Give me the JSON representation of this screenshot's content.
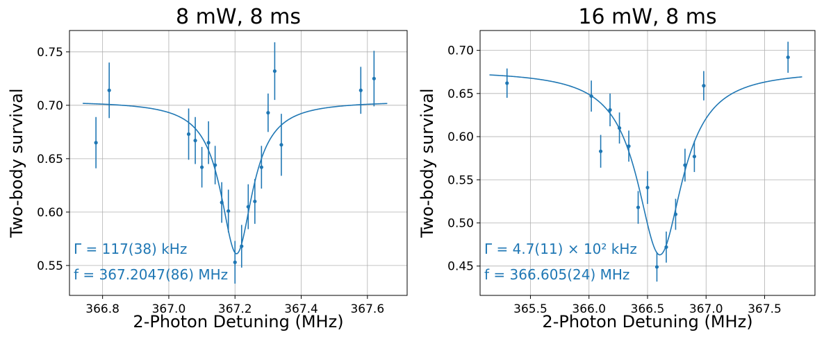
{
  "chart_data": [
    {
      "type": "scatter",
      "title": "8 mW, 8 ms",
      "xlabel": "2-Photon Detuning (MHz)",
      "ylabel": "Two-body survival",
      "xlim": [
        366.7,
        367.72
      ],
      "ylim": [
        0.522,
        0.77
      ],
      "grid": true,
      "x_ticks": [
        366.8,
        367.0,
        367.2,
        367.4,
        367.6
      ],
      "x_tick_labels": [
        "366.8",
        "367.0",
        "367.2",
        "367.4",
        "367.6"
      ],
      "y_ticks": [
        0.55,
        0.6,
        0.65,
        0.7,
        0.75
      ],
      "y_tick_labels": [
        "0.55",
        "0.60",
        "0.65",
        "0.70",
        "0.75"
      ],
      "color": "#1f77b4",
      "points": [
        {
          "x": 366.78,
          "y": 0.665,
          "err": 0.024
        },
        {
          "x": 366.82,
          "y": 0.714,
          "err": 0.026
        },
        {
          "x": 367.06,
          "y": 0.673,
          "err": 0.024
        },
        {
          "x": 367.08,
          "y": 0.667,
          "err": 0.022
        },
        {
          "x": 367.1,
          "y": 0.642,
          "err": 0.019
        },
        {
          "x": 367.12,
          "y": 0.665,
          "err": 0.02
        },
        {
          "x": 367.14,
          "y": 0.644,
          "err": 0.018
        },
        {
          "x": 367.16,
          "y": 0.609,
          "err": 0.019
        },
        {
          "x": 367.18,
          "y": 0.601,
          "err": 0.02
        },
        {
          "x": 367.2,
          "y": 0.553,
          "err": 0.02
        },
        {
          "x": 367.22,
          "y": 0.568,
          "err": 0.02
        },
        {
          "x": 367.24,
          "y": 0.605,
          "err": 0.021
        },
        {
          "x": 367.26,
          "y": 0.61,
          "err": 0.021
        },
        {
          "x": 367.28,
          "y": 0.642,
          "err": 0.02
        },
        {
          "x": 367.3,
          "y": 0.693,
          "err": 0.018
        },
        {
          "x": 367.32,
          "y": 0.732,
          "err": 0.027
        },
        {
          "x": 367.34,
          "y": 0.663,
          "err": 0.029
        },
        {
          "x": 367.58,
          "y": 0.714,
          "err": 0.022
        },
        {
          "x": 367.62,
          "y": 0.725,
          "err": 0.026
        }
      ],
      "fit": {
        "type": "lorentzian",
        "center": 367.2047,
        "fwhm": 0.117,
        "baseline": 0.704,
        "depth": 0.143,
        "x_range": [
          366.74,
          367.66
        ]
      },
      "annotations": [
        "Γ = 117(38) kHz",
        "f = 367.2047(86) MHz"
      ]
    },
    {
      "type": "scatter",
      "title": "16 mW, 8 ms",
      "xlabel": "2-Photon Detuning (MHz)",
      "ylabel": "Two-body survival",
      "xlim": [
        365.07,
        367.93
      ],
      "ylim": [
        0.416,
        0.723
      ],
      "grid": true,
      "x_ticks": [
        365.5,
        366.0,
        366.5,
        367.0,
        367.5
      ],
      "x_tick_labels": [
        "365.5",
        "366.0",
        "366.5",
        "367.0",
        "367.5"
      ],
      "y_ticks": [
        0.45,
        0.5,
        0.55,
        0.6,
        0.65,
        0.7
      ],
      "y_tick_labels": [
        "0.45",
        "0.50",
        "0.55",
        "0.60",
        "0.65",
        "0.70"
      ],
      "color": "#1f77b4",
      "points": [
        {
          "x": 365.3,
          "y": 0.662,
          "err": 0.017
        },
        {
          "x": 366.02,
          "y": 0.647,
          "err": 0.018
        },
        {
          "x": 366.1,
          "y": 0.583,
          "err": 0.019
        },
        {
          "x": 366.18,
          "y": 0.631,
          "err": 0.019
        },
        {
          "x": 366.26,
          "y": 0.61,
          "err": 0.018
        },
        {
          "x": 366.34,
          "y": 0.589,
          "err": 0.018
        },
        {
          "x": 366.42,
          "y": 0.518,
          "err": 0.019
        },
        {
          "x": 366.5,
          "y": 0.541,
          "err": 0.019
        },
        {
          "x": 366.58,
          "y": 0.449,
          "err": 0.017
        },
        {
          "x": 366.66,
          "y": 0.472,
          "err": 0.018
        },
        {
          "x": 366.74,
          "y": 0.51,
          "err": 0.018
        },
        {
          "x": 366.82,
          "y": 0.567,
          "err": 0.019
        },
        {
          "x": 366.9,
          "y": 0.577,
          "err": 0.018
        },
        {
          "x": 366.98,
          "y": 0.659,
          "err": 0.017
        },
        {
          "x": 367.7,
          "y": 0.692,
          "err": 0.018
        }
      ],
      "fit": {
        "type": "lorentzian",
        "center": 366.605,
        "fwhm": 0.47,
        "baseline": 0.677,
        "depth": 0.214,
        "x_range": [
          365.15,
          367.82
        ]
      },
      "annotations": [
        "Γ = 4.7(11) × 10² kHz",
        "f = 366.605(24) MHz"
      ]
    }
  ]
}
